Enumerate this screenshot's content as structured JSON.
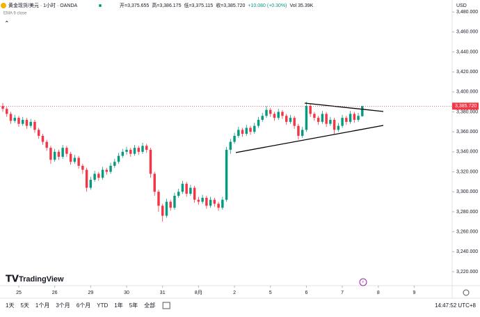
{
  "header": {
    "symbol": "黄金现货/美元 · 1小时 · OANDA",
    "stats": [
      "开=3,375.655",
      "高=3,386.175",
      "低=3,375.115",
      "收=3,385.720",
      "+10.080 (+0.30%)",
      "Vol 35.39K"
    ],
    "indicator": "EMA 9 close",
    "logo": "TradingView"
  },
  "toolbar": {
    "ranges": [
      "1天",
      "5天",
      "1个月",
      "3个月",
      "6个月",
      "YTD",
      "1年",
      "5年",
      "全部"
    ],
    "clock": "14:47:52 UTC+8"
  },
  "chart_data": {
    "type": "candlestick",
    "currency": "USD",
    "up_color": "#089981",
    "down_color": "#f23645",
    "open": [
      3386,
      3383,
      3378,
      3371,
      3374,
      3368,
      3372,
      3366,
      3370,
      3362,
      3356,
      3350,
      3344,
      3332,
      3340,
      3335,
      3344,
      3338,
      3330,
      3334,
      3326,
      3322,
      3304,
      3312,
      3318,
      3314,
      3322,
      3320,
      3326,
      3330,
      3336,
      3340,
      3342,
      3338,
      3344,
      3340,
      3346,
      3342,
      3318,
      3300,
      3286,
      3276,
      3290,
      3284,
      3296,
      3300,
      3308,
      3298,
      3304,
      3292,
      3290,
      3294,
      3286,
      3292,
      3288,
      3284,
      3292,
      3342,
      3350,
      3356,
      3362,
      3358,
      3364,
      3360,
      3366,
      3372,
      3376,
      3382,
      3378,
      3374,
      3380,
      3376,
      3370,
      3374,
      3366,
      3356,
      3362,
      3386,
      3378,
      3374,
      3370,
      3378,
      3368,
      3372,
      3362,
      3366,
      3374,
      3370,
      3378,
      3372,
      3375.655
    ],
    "high": [
      3389,
      3385,
      3380,
      3377,
      3376,
      3375,
      3374,
      3373,
      3372,
      3364,
      3358,
      3352,
      3346,
      3343,
      3342,
      3347,
      3346,
      3340,
      3337,
      3336,
      3328,
      3324,
      3315,
      3321,
      3320,
      3325,
      3324,
      3329,
      3333,
      3339,
      3343,
      3345,
      3344,
      3347,
      3346,
      3349,
      3348,
      3344,
      3320,
      3302,
      3288,
      3293,
      3292,
      3299,
      3303,
      3311,
      3310,
      3307,
      3306,
      3295,
      3297,
      3296,
      3295,
      3294,
      3290,
      3295,
      3345,
      3353,
      3359,
      3365,
      3364,
      3367,
      3366,
      3369,
      3375,
      3379,
      3386,
      3384,
      3380,
      3383,
      3382,
      3378,
      3377,
      3376,
      3368,
      3365,
      3390,
      3388,
      3380,
      3376,
      3381,
      3380,
      3375,
      3374,
      3369,
      3377,
      3376,
      3381,
      3380,
      3379,
      3386.175
    ],
    "low": [
      3380,
      3375,
      3368,
      3369,
      3365,
      3366,
      3363,
      3364,
      3359,
      3353,
      3347,
      3341,
      3328,
      3330,
      3332,
      3333,
      3335,
      3327,
      3328,
      3323,
      3318,
      3300,
      3302,
      3310,
      3311,
      3312,
      3317,
      3318,
      3324,
      3328,
      3334,
      3337,
      3335,
      3336,
      3337,
      3338,
      3339,
      3314,
      3296,
      3280,
      3270,
      3274,
      3281,
      3282,
      3294,
      3298,
      3295,
      3296,
      3289,
      3287,
      3288,
      3283,
      3284,
      3285,
      3281,
      3282,
      3290,
      3338,
      3348,
      3354,
      3355,
      3356,
      3357,
      3358,
      3364,
      3370,
      3374,
      3375,
      3371,
      3372,
      3373,
      3367,
      3368,
      3363,
      3352,
      3354,
      3360,
      3375,
      3371,
      3367,
      3368,
      3365,
      3366,
      3358,
      3360,
      3364,
      3367,
      3368,
      3369,
      3370,
      3375.115
    ],
    "close": [
      3383,
      3378,
      3371,
      3374,
      3368,
      3372,
      3366,
      3370,
      3362,
      3356,
      3350,
      3344,
      3332,
      3340,
      3335,
      3344,
      3338,
      3330,
      3334,
      3326,
      3322,
      3304,
      3312,
      3318,
      3314,
      3322,
      3320,
      3326,
      3330,
      3336,
      3340,
      3342,
      3338,
      3344,
      3340,
      3346,
      3342,
      3318,
      3300,
      3286,
      3276,
      3290,
      3284,
      3296,
      3300,
      3308,
      3298,
      3304,
      3292,
      3290,
      3294,
      3286,
      3292,
      3288,
      3284,
      3292,
      3342,
      3350,
      3356,
      3362,
      3358,
      3364,
      3360,
      3366,
      3372,
      3376,
      3382,
      3378,
      3374,
      3380,
      3376,
      3370,
      3374,
      3366,
      3356,
      3362,
      3386,
      3378,
      3374,
      3370,
      3378,
      3368,
      3372,
      3362,
      3366,
      3374,
      3370,
      3378,
      3372,
      3376,
      3385.72
    ],
    "last_price": {
      "value": 3385.72,
      "label": "3,385.720"
    },
    "xlim": [
      -0.7,
      112.5
    ],
    "xticks": [
      {
        "value": 4,
        "label": "25"
      },
      {
        "value": 13,
        "label": "26"
      },
      {
        "value": 22,
        "label": "29"
      },
      {
        "value": 31,
        "label": "30"
      },
      {
        "value": 40,
        "label": "31"
      },
      {
        "value": 49,
        "label": "8月"
      },
      {
        "value": 58,
        "label": "2"
      },
      {
        "value": 67,
        "label": "5"
      },
      {
        "value": 76,
        "label": "6"
      },
      {
        "value": 85,
        "label": "7"
      },
      {
        "value": 94,
        "label": "8"
      },
      {
        "value": 103,
        "label": "9"
      }
    ],
    "ylim": [
      3206,
      3492
    ],
    "yticks": [
      {
        "value": 3480,
        "label": "3,480.000"
      },
      {
        "value": 3460,
        "label": "3,460.000"
      },
      {
        "value": 3440,
        "label": "3,440.000"
      },
      {
        "value": 3420,
        "label": "3,420.000"
      },
      {
        "value": 3400,
        "label": "3,400.000"
      },
      {
        "value": 3380,
        "label": "3,380.000"
      },
      {
        "value": 3360,
        "label": "3,360.000"
      },
      {
        "value": 3340,
        "label": "3,340.000"
      },
      {
        "value": 3320,
        "label": "3,320.000"
      },
      {
        "value": 3300,
        "label": "3,300.000"
      },
      {
        "value": 3280,
        "label": "3,280.000"
      },
      {
        "value": 3260,
        "label": "3,260.000"
      },
      {
        "value": 3240,
        "label": "3,240.000"
      },
      {
        "value": 3220,
        "label": "3,220.000"
      }
    ]
  }
}
